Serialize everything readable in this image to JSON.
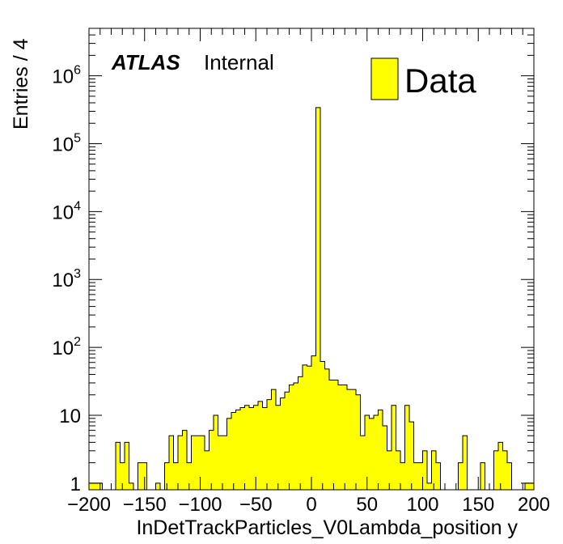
{
  "chart_data": {
    "type": "bar",
    "style": "filled-step-histogram",
    "xlabel": "InDetTrackParticles_V0Lambda_position y",
    "ylabel": "Entries / 4",
    "xlim": [
      -200,
      200
    ],
    "ylim": [
      0.8,
      5000000
    ],
    "yscale": "log",
    "bin_width": 4,
    "x_ticks": [
      -200,
      -150,
      -100,
      -50,
      0,
      50,
      100,
      150,
      200
    ],
    "x_tick_labels": [
      "−200",
      "−150",
      "−100",
      "−50",
      "0",
      "50",
      "100",
      "150",
      "200"
    ],
    "y_ticks": [
      1,
      10,
      100,
      1000,
      10000,
      100000,
      1000000
    ],
    "y_tick_labels": [
      {
        "base": "1",
        "exp": ""
      },
      {
        "base": "10",
        "exp": ""
      },
      {
        "base": "10",
        "exp": "2"
      },
      {
        "base": "10",
        "exp": "3"
      },
      {
        "base": "10",
        "exp": "4"
      },
      {
        "base": "10",
        "exp": "5"
      },
      {
        "base": "10",
        "exp": "6"
      }
    ],
    "atlas_label": "ATLAS",
    "atlas_sublabel": "Internal",
    "legend": {
      "position": "top-right",
      "entries": [
        "Data"
      ]
    },
    "fill_color": "#ffff00",
    "line_color": "#000000",
    "series": [
      {
        "name": "Data",
        "bins": [
          {
            "x": -200,
            "count": 1
          },
          {
            "x": -196,
            "count": 1
          },
          {
            "x": -192,
            "count": 1
          },
          {
            "x": -176,
            "count": 4
          },
          {
            "x": -172,
            "count": 2
          },
          {
            "x": -168,
            "count": 4
          },
          {
            "x": -164,
            "count": 1
          },
          {
            "x": -156,
            "count": 2
          },
          {
            "x": -152,
            "count": 2
          },
          {
            "x": -140,
            "count": 1
          },
          {
            "x": -132,
            "count": 2
          },
          {
            "x": -128,
            "count": 5
          },
          {
            "x": -124,
            "count": 2
          },
          {
            "x": -120,
            "count": 5
          },
          {
            "x": -116,
            "count": 6
          },
          {
            "x": -112,
            "count": 2
          },
          {
            "x": -108,
            "count": 5
          },
          {
            "x": -104,
            "count": 5
          },
          {
            "x": -100,
            "count": 5
          },
          {
            "x": -96,
            "count": 3
          },
          {
            "x": -92,
            "count": 6
          },
          {
            "x": -88,
            "count": 10
          },
          {
            "x": -84,
            "count": 5
          },
          {
            "x": -80,
            "count": 5
          },
          {
            "x": -76,
            "count": 9
          },
          {
            "x": -72,
            "count": 11
          },
          {
            "x": -68,
            "count": 12
          },
          {
            "x": -64,
            "count": 13
          },
          {
            "x": -60,
            "count": 14
          },
          {
            "x": -56,
            "count": 13
          },
          {
            "x": -52,
            "count": 14
          },
          {
            "x": -48,
            "count": 16
          },
          {
            "x": -44,
            "count": 13
          },
          {
            "x": -40,
            "count": 17
          },
          {
            "x": -36,
            "count": 24
          },
          {
            "x": -32,
            "count": 14
          },
          {
            "x": -28,
            "count": 18
          },
          {
            "x": -24,
            "count": 22
          },
          {
            "x": -20,
            "count": 28
          },
          {
            "x": -16,
            "count": 30
          },
          {
            "x": -12,
            "count": 37
          },
          {
            "x": -8,
            "count": 55
          },
          {
            "x": -4,
            "count": 53
          },
          {
            "x": 0,
            "count": 75
          },
          {
            "x": 4,
            "count": 340000
          },
          {
            "x": 8,
            "count": 62
          },
          {
            "x": 12,
            "count": 48
          },
          {
            "x": 16,
            "count": 33
          },
          {
            "x": 20,
            "count": 33
          },
          {
            "x": 24,
            "count": 28
          },
          {
            "x": 28,
            "count": 28
          },
          {
            "x": 32,
            "count": 24
          },
          {
            "x": 36,
            "count": 24
          },
          {
            "x": 40,
            "count": 20
          },
          {
            "x": 44,
            "count": 5
          },
          {
            "x": 48,
            "count": 10
          },
          {
            "x": 52,
            "count": 9
          },
          {
            "x": 56,
            "count": 10
          },
          {
            "x": 60,
            "count": 12
          },
          {
            "x": 64,
            "count": 7
          },
          {
            "x": 68,
            "count": 3
          },
          {
            "x": 72,
            "count": 14
          },
          {
            "x": 76,
            "count": 3
          },
          {
            "x": 80,
            "count": 2
          },
          {
            "x": 84,
            "count": 14
          },
          {
            "x": 88,
            "count": 8
          },
          {
            "x": 92,
            "count": 2
          },
          {
            "x": 96,
            "count": 2
          },
          {
            "x": 100,
            "count": 3
          },
          {
            "x": 104,
            "count": 1
          },
          {
            "x": 108,
            "count": 3
          },
          {
            "x": 112,
            "count": 2
          },
          {
            "x": 132,
            "count": 2
          },
          {
            "x": 136,
            "count": 5
          },
          {
            "x": 152,
            "count": 2
          },
          {
            "x": 164,
            "count": 3
          },
          {
            "x": 168,
            "count": 4
          },
          {
            "x": 172,
            "count": 3
          },
          {
            "x": 176,
            "count": 2
          },
          {
            "x": 192,
            "count": 1
          },
          {
            "x": 196,
            "count": 1
          }
        ]
      }
    ]
  }
}
